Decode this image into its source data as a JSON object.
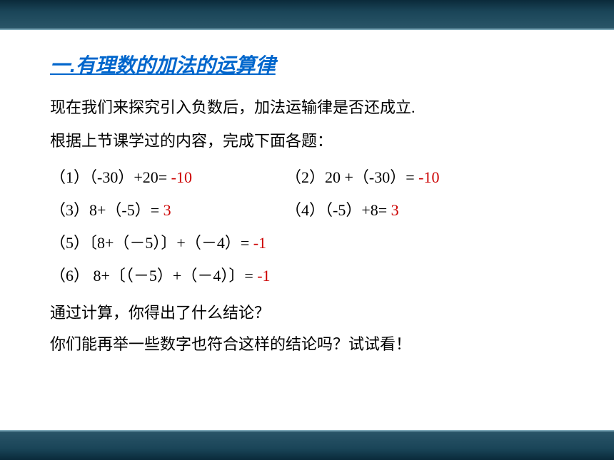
{
  "section_title": "一.有理数的加法的运算律",
  "intro_line1": "现在我们来探究引入负数后，加法运输律是否还成立.",
  "intro_line2": "根据上节课学过的内容，完成下面各题：",
  "problems": {
    "p1_text": "（1）（-30）+20=",
    "p1_answer": " -10",
    "p2_text": "（2）20 +（-30）=",
    "p2_answer": " -10",
    "p3_text": "（3）8+（-5）=",
    "p3_answer": " 3",
    "p4_text": "（4）（-5）+8=",
    "p4_answer": " 3",
    "p5_text": "（5）〔8+（－5）〕+（－4）=",
    "p5_answer": " -1",
    "p6_text": "（6） 8+〔（－5）+（－4）〕=",
    "p6_answer": " -1"
  },
  "conclusion1": "通过计算，你得出了什么结论？",
  "conclusion2": "你们能再举一些数字也符合这样的结论吗？试试看！",
  "style": {
    "title_color": "#0066cc",
    "answer_color": "#cc0000",
    "text_color": "#000000",
    "border_gradient_top": "#0a2a3a",
    "border_gradient_bottom": "#2a5568",
    "title_fontsize": 28,
    "body_fontsize": 22
  }
}
